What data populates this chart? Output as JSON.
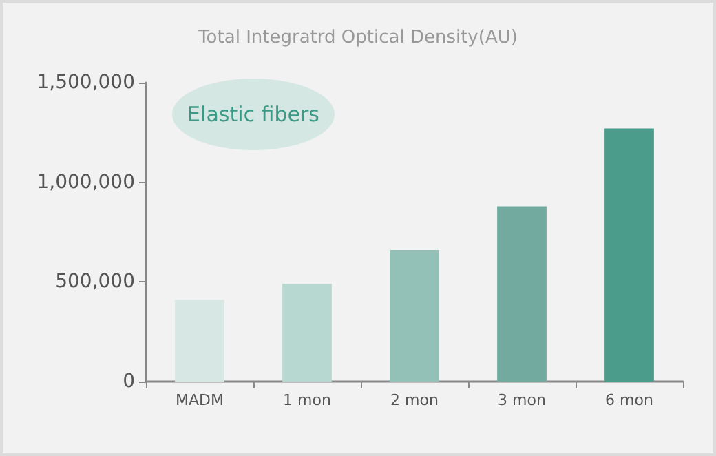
{
  "chart_data": {
    "type": "bar",
    "title": "Total Integratrd Optical Density(AU)",
    "categories": [
      "MADM",
      "1 mon",
      "2 mon",
      "3 mon",
      "6 mon"
    ],
    "values": [
      410000,
      490000,
      660000,
      880000,
      1270000
    ],
    "colors": [
      "#d7e8e4",
      "#b7d8d1",
      "#93c1b7",
      "#72aa9f",
      "#4c9c8c"
    ],
    "ylim": [
      0,
      1500000
    ],
    "yticks": [
      0,
      {
        "value": 500000,
        "label": "500,000"
      },
      {
        "value": 1000000,
        "label": "1,000,000"
      },
      {
        "value": 1500000,
        "label": "1,500,000"
      }
    ],
    "grid": false,
    "annotations": [
      "Elastic fibers"
    ]
  }
}
